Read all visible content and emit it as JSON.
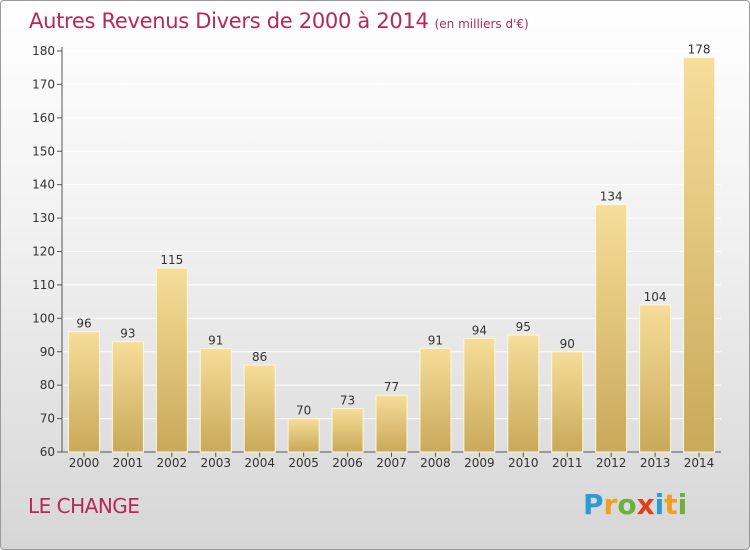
{
  "title": "Autres Revenus Divers de 2000 à 2014",
  "subtitle": "(en milliers d'€)",
  "place": "LE CHANGE",
  "logo": {
    "text": "Proxiti"
  },
  "colors": {
    "title": "#b8275a",
    "bar_top": "#f6dd99",
    "bar_bottom": "#c9a95a",
    "logo_blue": "#2a9bd6",
    "logo_orange": "#f0a020",
    "logo_green": "#6ab23a",
    "logo_red": "#e0401c"
  },
  "chart_data": {
    "type": "bar",
    "categories": [
      "2000",
      "2001",
      "2002",
      "2003",
      "2004",
      "2005",
      "2006",
      "2007",
      "2008",
      "2009",
      "2010",
      "2011",
      "2012",
      "2013",
      "2014"
    ],
    "values": [
      96,
      93,
      115,
      91,
      86,
      70,
      73,
      77,
      91,
      94,
      95,
      90,
      134,
      104,
      178
    ],
    "ylim": [
      60,
      180
    ],
    "yticks": [
      60,
      70,
      80,
      90,
      100,
      110,
      120,
      130,
      140,
      150,
      160,
      170,
      180
    ],
    "grid": true,
    "data_labels": true,
    "title": "Autres Revenus Divers de 2000 à 2014",
    "xlabel": "",
    "ylabel": ""
  }
}
